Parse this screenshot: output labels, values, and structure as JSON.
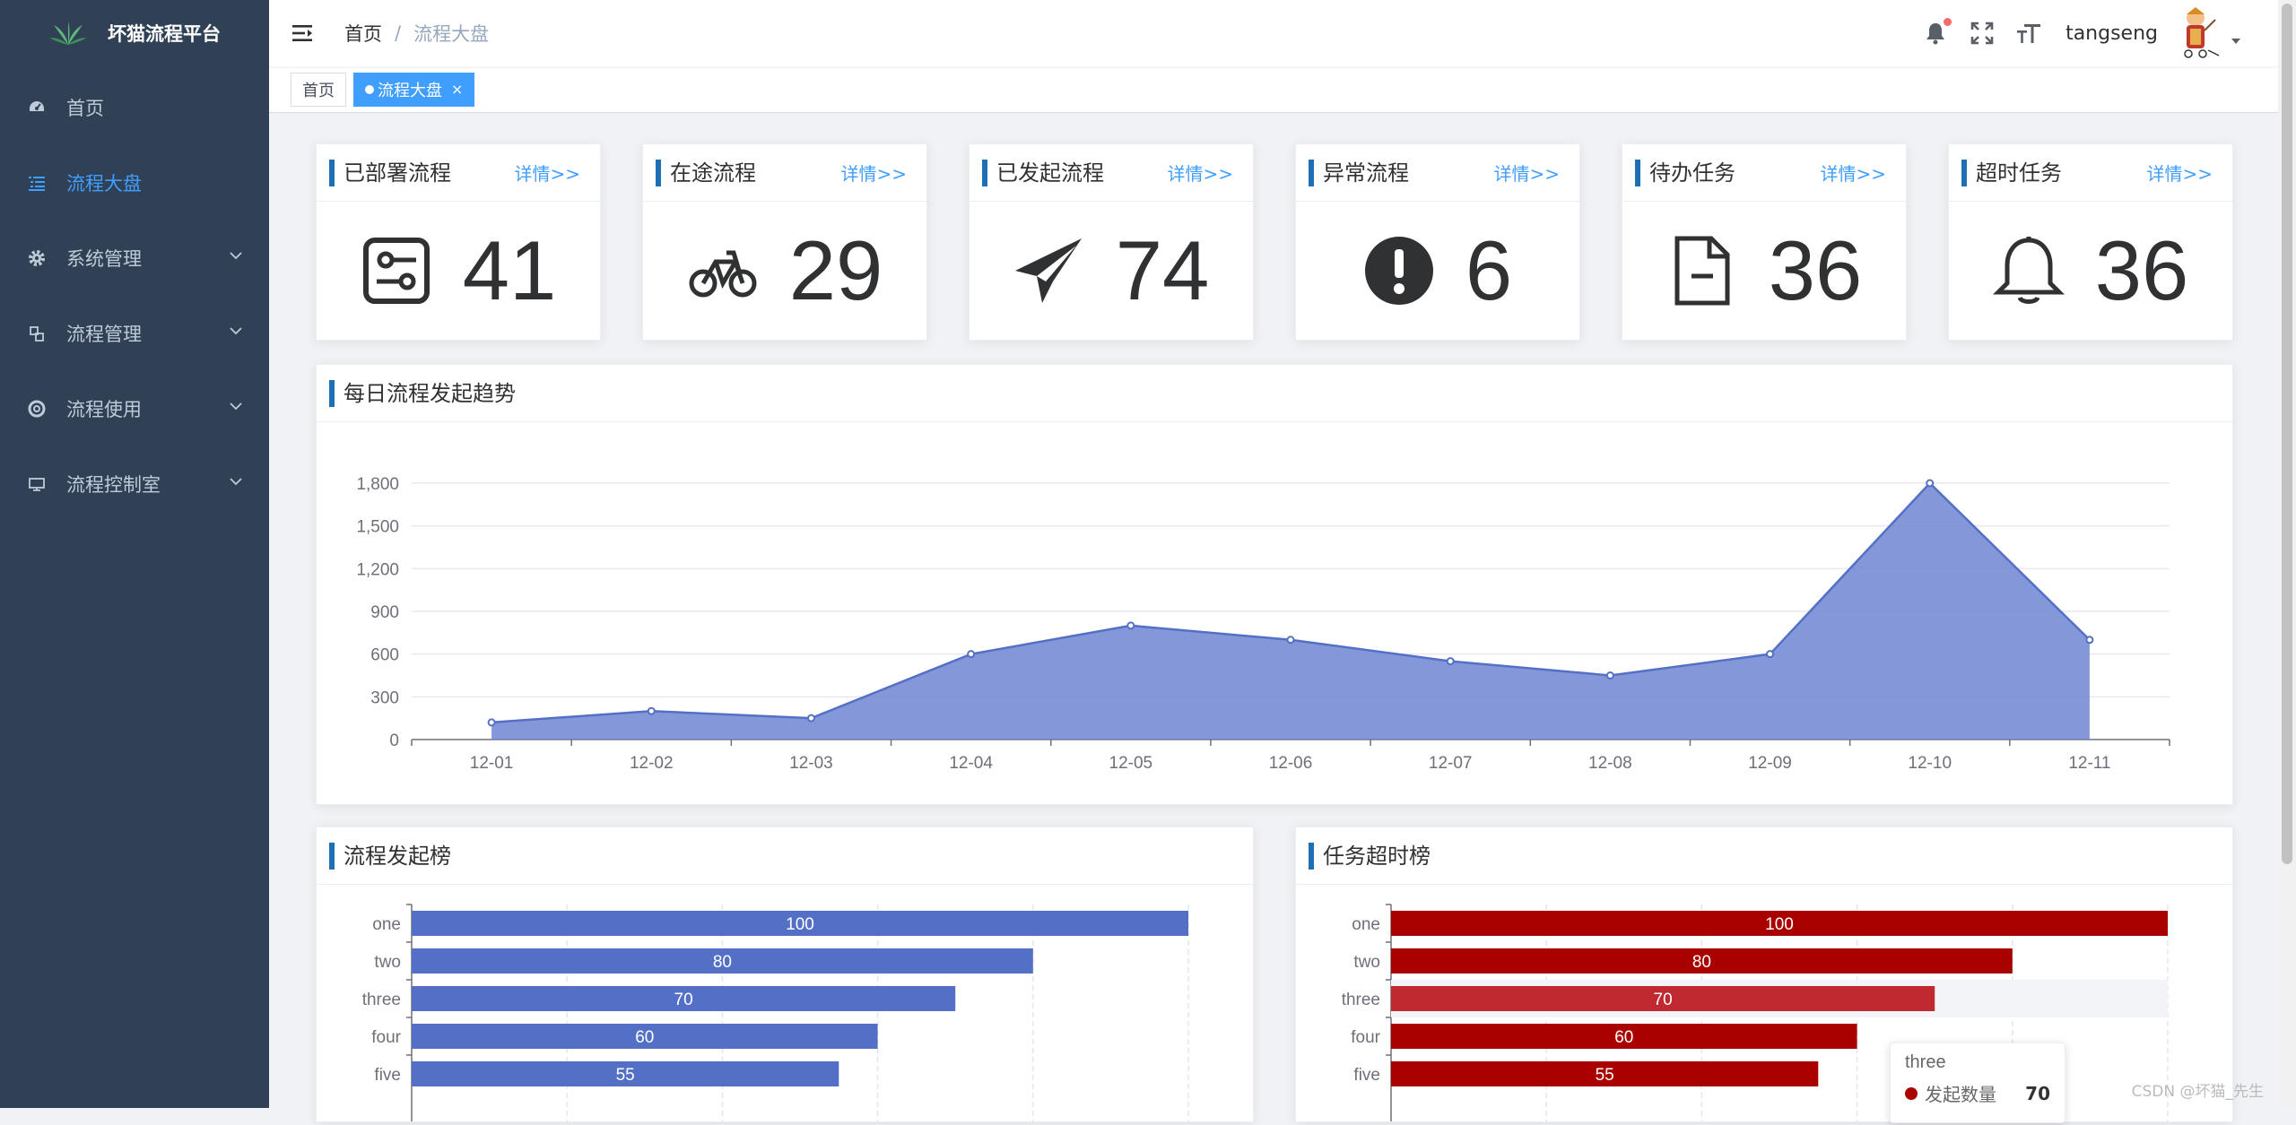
{
  "app": {
    "title": "坏猫流程平台"
  },
  "sidebar": {
    "items": [
      {
        "label": "首页",
        "icon": "dashboard-icon",
        "active": false,
        "has_children": false
      },
      {
        "label": "流程大盘",
        "icon": "list-icon",
        "active": true,
        "has_children": false
      },
      {
        "label": "系统管理",
        "icon": "gear-icon",
        "active": false,
        "has_children": true
      },
      {
        "label": "流程管理",
        "icon": "flow-icon",
        "active": false,
        "has_children": true
      },
      {
        "label": "流程使用",
        "icon": "lifebuoy-icon",
        "active": false,
        "has_children": true
      },
      {
        "label": "流程控制室",
        "icon": "monitor-icon",
        "active": false,
        "has_children": true
      }
    ]
  },
  "navbar": {
    "breadcrumb": {
      "home": "首页",
      "separator": "/",
      "current": "流程大盘"
    },
    "username": "tangseng"
  },
  "tags": [
    {
      "label": "首页",
      "active": false
    },
    {
      "label": "流程大盘",
      "active": true
    }
  ],
  "stats": [
    {
      "title": "已部署流程",
      "link": "详情>>",
      "value": "41",
      "icon": "settings-panel-icon"
    },
    {
      "title": "在途流程",
      "link": "详情>>",
      "value": "29",
      "icon": "bicycle-icon"
    },
    {
      "title": "已发起流程",
      "link": "详情>>",
      "value": "74",
      "icon": "paper-plane-icon"
    },
    {
      "title": "异常流程",
      "link": "详情>>",
      "value": "6",
      "icon": "exclamation-icon"
    },
    {
      "title": "待办任务",
      "link": "详情>>",
      "value": "36",
      "icon": "document-icon"
    },
    {
      "title": "超时任务",
      "link": "详情>>",
      "value": "36",
      "icon": "bell-icon"
    }
  ],
  "trend": {
    "title": "每日流程发起趋势"
  },
  "rank_start": {
    "title": "流程发起榜"
  },
  "rank_timeout": {
    "title": "任务超时榜",
    "tooltip": {
      "category": "three",
      "series": "发起数量",
      "value": "70"
    }
  },
  "watermark": "CSDN @坏猫_先生",
  "colors": {
    "sidebar_bg": "#304156",
    "accent": "#409eff",
    "area": "#6f85d2",
    "bar_blue": "#5470c6",
    "bar_red": "#a90000"
  },
  "chart_data": [
    {
      "type": "area",
      "categories": [
        "12-01",
        "12-02",
        "12-03",
        "12-04",
        "12-05",
        "12-06",
        "12-07",
        "12-08",
        "12-09",
        "12-10",
        "12-11"
      ],
      "values": [
        120,
        200,
        150,
        600,
        800,
        700,
        550,
        450,
        600,
        1800,
        700
      ],
      "yticks": [
        "0",
        "300",
        "600",
        "900",
        "1,200",
        "1,500",
        "1,800"
      ],
      "ylim": [
        0,
        1800
      ],
      "grid": true
    },
    {
      "type": "bar",
      "orientation": "horizontal",
      "categories": [
        "one",
        "two",
        "three",
        "four",
        "five"
      ],
      "values": [
        100,
        80,
        70,
        60,
        55
      ],
      "xlim": [
        0,
        100
      ],
      "color": "#5470c6"
    },
    {
      "type": "bar",
      "orientation": "horizontal",
      "categories": [
        "one",
        "two",
        "three",
        "four",
        "five"
      ],
      "values": [
        100,
        80,
        70,
        60,
        55
      ],
      "xlim": [
        0,
        100
      ],
      "color": "#a90000",
      "highlighted": "three"
    }
  ]
}
